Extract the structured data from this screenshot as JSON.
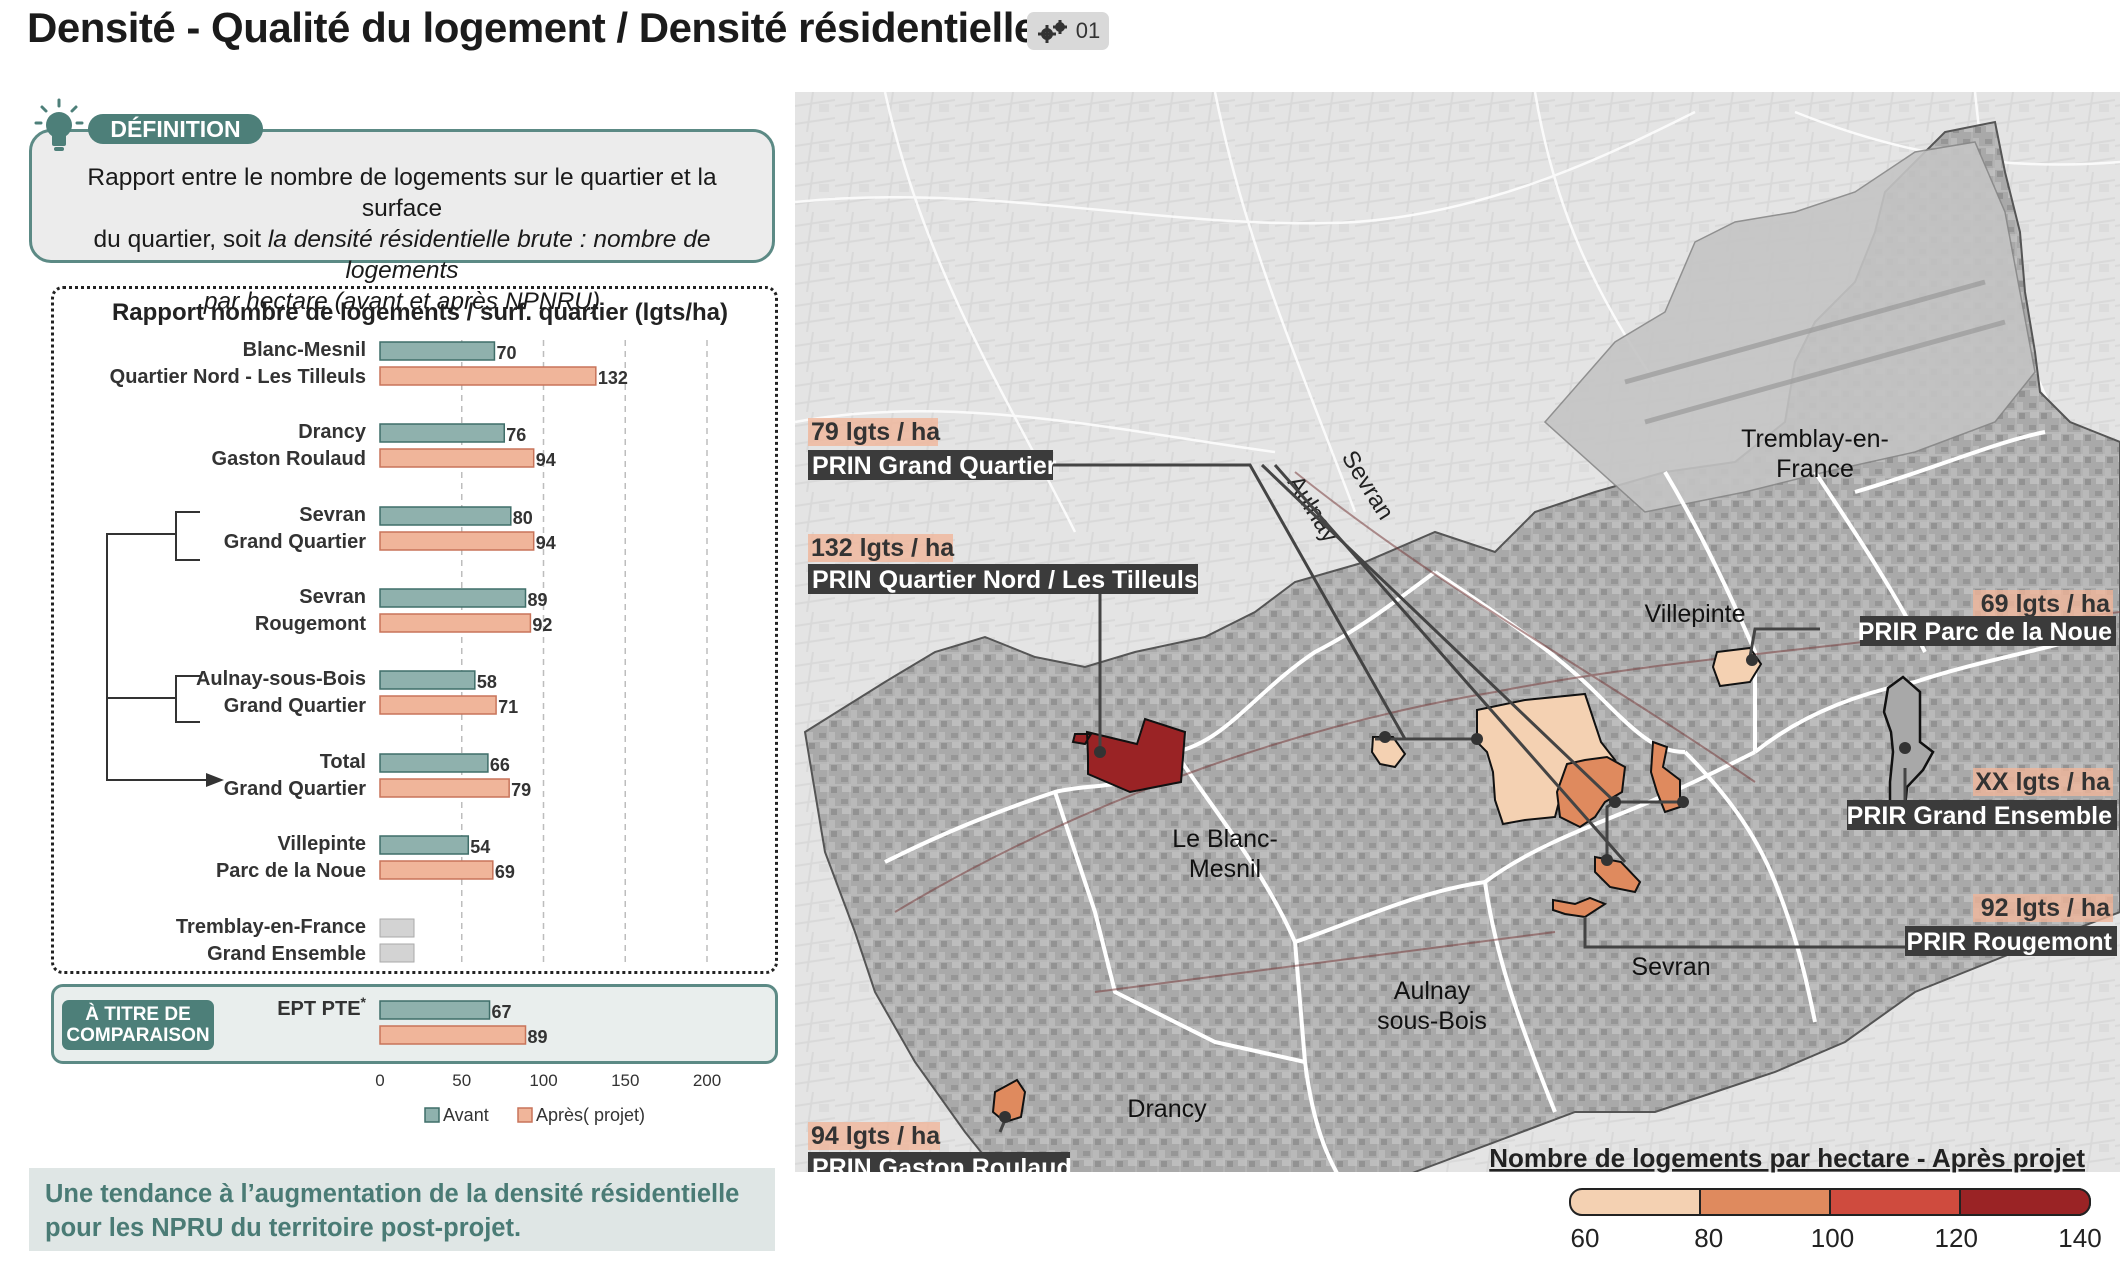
{
  "header": {
    "title": "Densité - Qualité du logement / Densité résidentielle",
    "badge": "01"
  },
  "definition": {
    "label": "DÉFINITION",
    "line1": "Rapport entre le nombre de logements sur le quartier et la surface",
    "line2a": "du quartier, soit ",
    "line2b": "la densité résidentielle brute : nombre de logements",
    "line3": "par hectare (avant et après NPNRU)"
  },
  "comparison": {
    "label_line1": "À TITRE DE",
    "label_line2": "COMPARAISON"
  },
  "conclusion": {
    "line1": "Une tendance à l’augmentation de la densité résidentielle",
    "line2": "pour les NPRU du territoire post-projet."
  },
  "chart_data": {
    "type": "bar",
    "title": "Rapport nombre de logements / surf. quartier (lgts/ha)",
    "orientation": "horizontal",
    "xlim": [
      0,
      200
    ],
    "xticks": [
      0,
      50,
      100,
      150,
      200
    ],
    "grid": true,
    "legend": "bottom",
    "categories": [
      {
        "line1": "Blanc-Mesnil",
        "line2": "Quartier Nord - Les Tilleuls"
      },
      {
        "line1": "Drancy",
        "line2": "Gaston Roulaud"
      },
      {
        "line1": "Sevran",
        "line2": "Grand Quartier"
      },
      {
        "line1": "Sevran",
        "line2": "Rougemont"
      },
      {
        "line1": "Aulnay-sous-Bois",
        "line2": "Grand Quartier"
      },
      {
        "line1": "Total",
        "line2": "Grand Quartier"
      },
      {
        "line1": "Villepinte",
        "line2": "Parc de la Noue"
      },
      {
        "line1": "Tremblay-en-France",
        "line2": "Grand Ensemble"
      },
      {
        "line1": "EPT PTE",
        "line2": ""
      }
    ],
    "series": [
      {
        "name": "Avant",
        "color": "#8fb1ad",
        "values": [
          70,
          76,
          80,
          89,
          58,
          66,
          54,
          null,
          67
        ]
      },
      {
        "name": "Après( projet)",
        "color": "#f0b59a",
        "values": [
          132,
          94,
          94,
          92,
          71,
          79,
          69,
          null,
          89
        ]
      }
    ],
    "missing_color": "#d3d3d3",
    "footnote_mark": "*"
  },
  "map": {
    "place_labels": [
      {
        "id": "tremblay",
        "line1": "Tremblay-en-",
        "line2": "France"
      },
      {
        "id": "villepinte",
        "line1": "Villepinte",
        "line2": ""
      },
      {
        "id": "blancmesnil",
        "line1": "Le Blanc-",
        "line2": "Mesnil"
      },
      {
        "id": "aulnay",
        "line1": "Aulnay",
        "line2": "sous-Bois"
      },
      {
        "id": "sevran",
        "line1": "Sevran",
        "line2": ""
      },
      {
        "id": "drancy",
        "line1": "Drancy",
        "line2": ""
      }
    ],
    "rail_labels": [
      "Sevran",
      "Aulnay"
    ],
    "callouts": [
      {
        "id": "grand-quartier",
        "value": "79 lgts / ha",
        "name": "PRIN Grand Quartier"
      },
      {
        "id": "tilleuls",
        "value": "132 lgts / ha",
        "name": "PRIN Quartier Nord / Les Tilleuls"
      },
      {
        "id": "parc-noue",
        "value": "69 lgts / ha",
        "name": "PRIR Parc de la Noue"
      },
      {
        "id": "grand-ensemble",
        "value": "XX lgts / ha",
        "name": "PRIR Grand Ensemble"
      },
      {
        "id": "rougemont",
        "value": "92 lgts / ha",
        "name": "PRIR Rougemont"
      },
      {
        "id": "gaston-roulaud",
        "value": "94 lgts / ha",
        "name": "PRIN Gaston Roulaud"
      }
    ],
    "legend": {
      "title": "Nombre de logements par hectare - Après projet",
      "ticks": [
        60,
        80,
        100,
        120,
        140
      ],
      "colors": [
        "#f4d1b2",
        "#df8a5e",
        "#cf4b3e",
        "#9a2325"
      ]
    }
  }
}
